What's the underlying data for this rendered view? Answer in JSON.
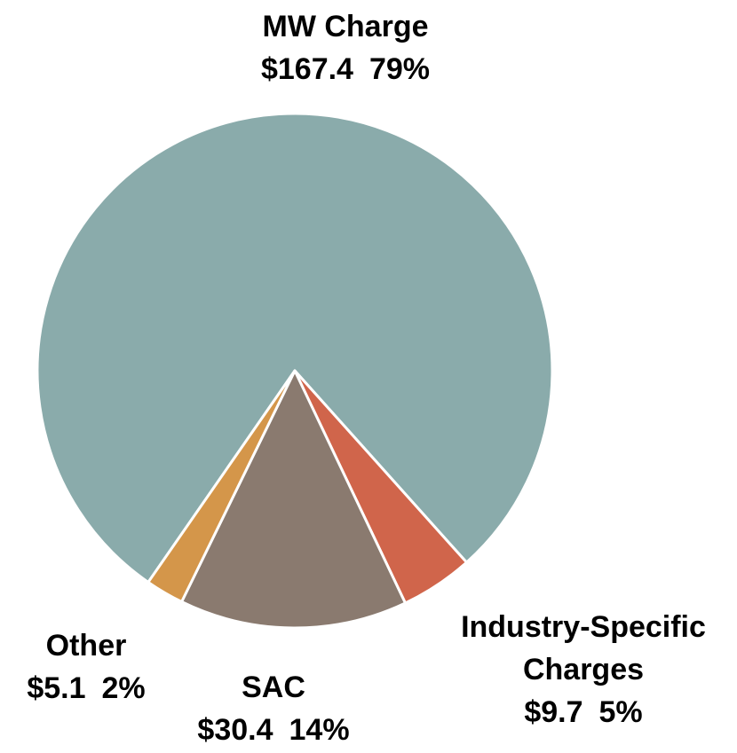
{
  "chart_data": {
    "type": "pie",
    "categories": [
      "MW Charge",
      "Industry-Specific Charges",
      "SAC",
      "Other"
    ],
    "values": [
      167.4,
      9.7,
      30.4,
      5.1
    ],
    "value_labels": [
      "$167.4",
      "$9.7",
      "$30.4",
      "$5.1"
    ],
    "percents": [
      79,
      5,
      14,
      2
    ],
    "percent_labels": [
      "79%",
      "5%",
      "14%",
      "2%"
    ],
    "colors": [
      "#8aabab",
      "#d0654b",
      "#8a7a6f",
      "#d4964a"
    ]
  }
}
